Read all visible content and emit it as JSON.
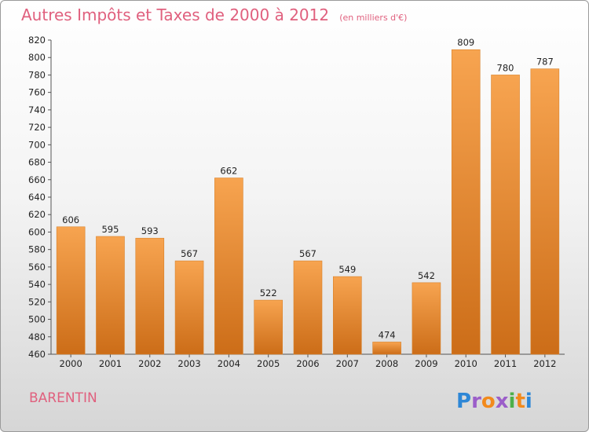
{
  "header": {
    "title": "Autres Impôts et Taxes de 2000 à 2012",
    "subtitle": "(en milliers d'€)"
  },
  "footer": {
    "commune": "BARENTIN",
    "logo_text": "Proxiti"
  },
  "colors": {
    "title": "#e0607e",
    "bar_light": "#f7a450",
    "bar_dark": "#cc6d18",
    "logo_letters": [
      "#2e87d6",
      "#9b5ec9",
      "#f28a1c",
      "#9b5ec9",
      "#4db04a",
      "#f28a1c",
      "#2e87d6"
    ]
  },
  "chart_data": {
    "type": "bar",
    "categories": [
      "2000",
      "2001",
      "2002",
      "2003",
      "2004",
      "2005",
      "2006",
      "2007",
      "2008",
      "2009",
      "2010",
      "2011",
      "2012"
    ],
    "values": [
      606,
      595,
      593,
      567,
      662,
      522,
      567,
      549,
      474,
      542,
      809,
      780,
      787
    ],
    "ylim": [
      460,
      820
    ],
    "ytick_step": 20,
    "grid": false
  }
}
